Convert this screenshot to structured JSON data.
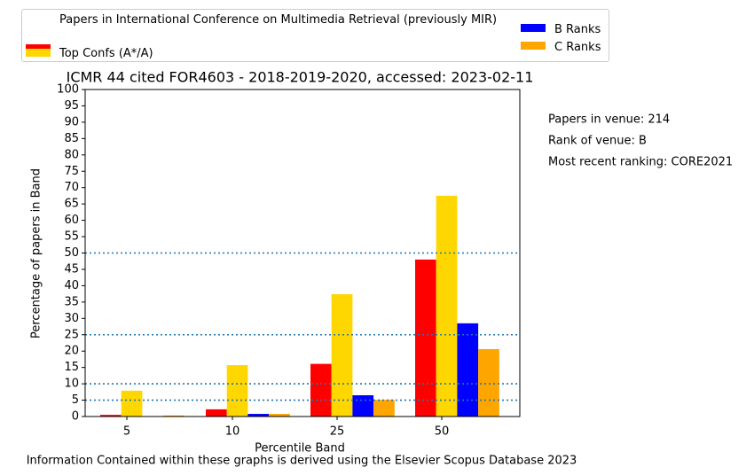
{
  "chart_data": {
    "type": "bar",
    "title": "ICMR 44 cited FOR4603 - 2018-2019-2020, accessed: 2023-02-11",
    "xlabel": "Percentile Band",
    "ylabel": "Percentage of papers in Band",
    "categories": [
      "5",
      "10",
      "25",
      "50"
    ],
    "series": [
      {
        "name": "Papers in International Conference on Multimedia Retrieval (previously MIR)",
        "color": "#ff0000",
        "values": [
          0.5,
          2.2,
          16.1,
          48
        ]
      },
      {
        "name": "Top Confs (A*/A)",
        "color": "#ffd700",
        "values": [
          7.9,
          15.7,
          37.4,
          67.5
        ]
      },
      {
        "name": "B Ranks",
        "color": "#0000ff",
        "values": [
          0,
          0.8,
          6.5,
          28.5
        ]
      },
      {
        "name": "C Ranks",
        "color": "#ffa500",
        "values": [
          0.3,
          0.8,
          5.1,
          20.6
        ]
      }
    ],
    "ylim": [
      0,
      100
    ],
    "yticks": [
      0,
      5,
      10,
      15,
      20,
      25,
      30,
      35,
      40,
      45,
      50,
      55,
      60,
      65,
      70,
      75,
      80,
      85,
      90,
      95,
      100
    ],
    "reference_lines": [
      5,
      10,
      25,
      50
    ],
    "reference_line_color": "#1f77b4",
    "annotations": [
      "Papers in venue: 214",
      "Rank of venue: B",
      "Most recent ranking: CORE2021"
    ],
    "footer": "Information Contained within these graphs is derived using the Elsevier Scopus Database 2023"
  }
}
